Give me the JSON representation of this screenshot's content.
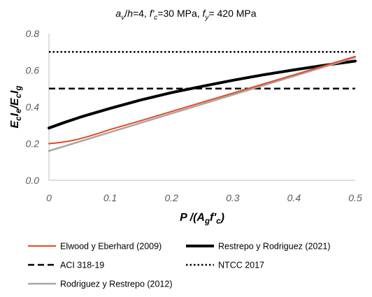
{
  "chart_data": {
    "type": "line",
    "title": {
      "parts": [
        {
          "t": "a",
          "i": true
        },
        {
          "t": "v",
          "i": true,
          "sub": true
        },
        {
          "t": "/"
        },
        {
          "t": "h",
          "i": true
        },
        {
          "t": "=4, "
        },
        {
          "t": "f'",
          "i": true
        },
        {
          "t": "c",
          "i": true,
          "sub": true
        },
        {
          "t": "=30 MPa, "
        },
        {
          "t": "f",
          "i": true
        },
        {
          "t": "y",
          "i": true,
          "sub": true
        },
        {
          "t": "= 420 MPa"
        }
      ]
    },
    "xlabel": {
      "parts": [
        {
          "t": "P"
        },
        {
          "t": " /("
        },
        {
          "t": "A"
        },
        {
          "t": "g",
          "sub": true
        },
        {
          "t": "f'"
        },
        {
          "t": "c",
          "sub": true
        },
        {
          "t": ")"
        }
      ]
    },
    "ylabel": {
      "parts": [
        {
          "t": "E"
        },
        {
          "t": "c",
          "sub": true
        },
        {
          "t": "I"
        },
        {
          "t": "e",
          "sub": true
        },
        {
          "t": "/E"
        },
        {
          "t": "c",
          "sub": true
        },
        {
          "t": "I"
        },
        {
          "t": "g",
          "sub": true
        }
      ]
    },
    "xlim": [
      0,
      0.5
    ],
    "ylim": [
      0,
      0.8
    ],
    "xticks": [
      "0",
      "0.1",
      "0.2",
      "0.3",
      "0.4",
      "0.5"
    ],
    "yticks": [
      "0.0",
      "0.2",
      "0.4",
      "0.6",
      "0.8"
    ],
    "grid": false,
    "legend_position": "bottom",
    "series": [
      {
        "name": "Elwood y Eberhard (2009)",
        "color": "#e8471e",
        "width": 2,
        "dash": "",
        "x": [
          0,
          0.01,
          0.02,
          0.03,
          0.04,
          0.05,
          0.06,
          0.07,
          0.08,
          0.09,
          0.1,
          0.15,
          0.2,
          0.25,
          0.3,
          0.35,
          0.4,
          0.45,
          0.5
        ],
        "y": [
          0.2,
          0.203,
          0.207,
          0.212,
          0.218,
          0.226,
          0.235,
          0.245,
          0.255,
          0.266,
          0.277,
          0.325,
          0.375,
          0.425,
          0.475,
          0.525,
          0.575,
          0.625,
          0.675
        ]
      },
      {
        "name": "Restrepo y Rodriguez (2021)",
        "color": "#000000",
        "width": 4,
        "dash": "",
        "x": [
          0,
          0.025,
          0.05,
          0.075,
          0.1,
          0.15,
          0.2,
          0.25,
          0.3,
          0.35,
          0.4,
          0.45,
          0.5
        ],
        "y": [
          0.285,
          0.315,
          0.343,
          0.368,
          0.392,
          0.438,
          0.478,
          0.512,
          0.545,
          0.575,
          0.602,
          0.627,
          0.65
        ]
      },
      {
        "name": "ACI 318-19",
        "color": "#000000",
        "width": 2.5,
        "dash": "9,5",
        "x": [
          0,
          0.5
        ],
        "y": [
          0.5,
          0.5
        ]
      },
      {
        "name": "NTCC 2017",
        "color": "#000000",
        "width": 2.5,
        "dash": "2.5,3",
        "x": [
          0,
          0.5
        ],
        "y": [
          0.7,
          0.7
        ]
      },
      {
        "name": "Rodriguez y Restrepo (2012)",
        "color": "#a6a6a6",
        "width": 2.5,
        "dash": "",
        "x": [
          0,
          0.5
        ],
        "y": [
          0.16,
          0.67
        ]
      }
    ]
  }
}
